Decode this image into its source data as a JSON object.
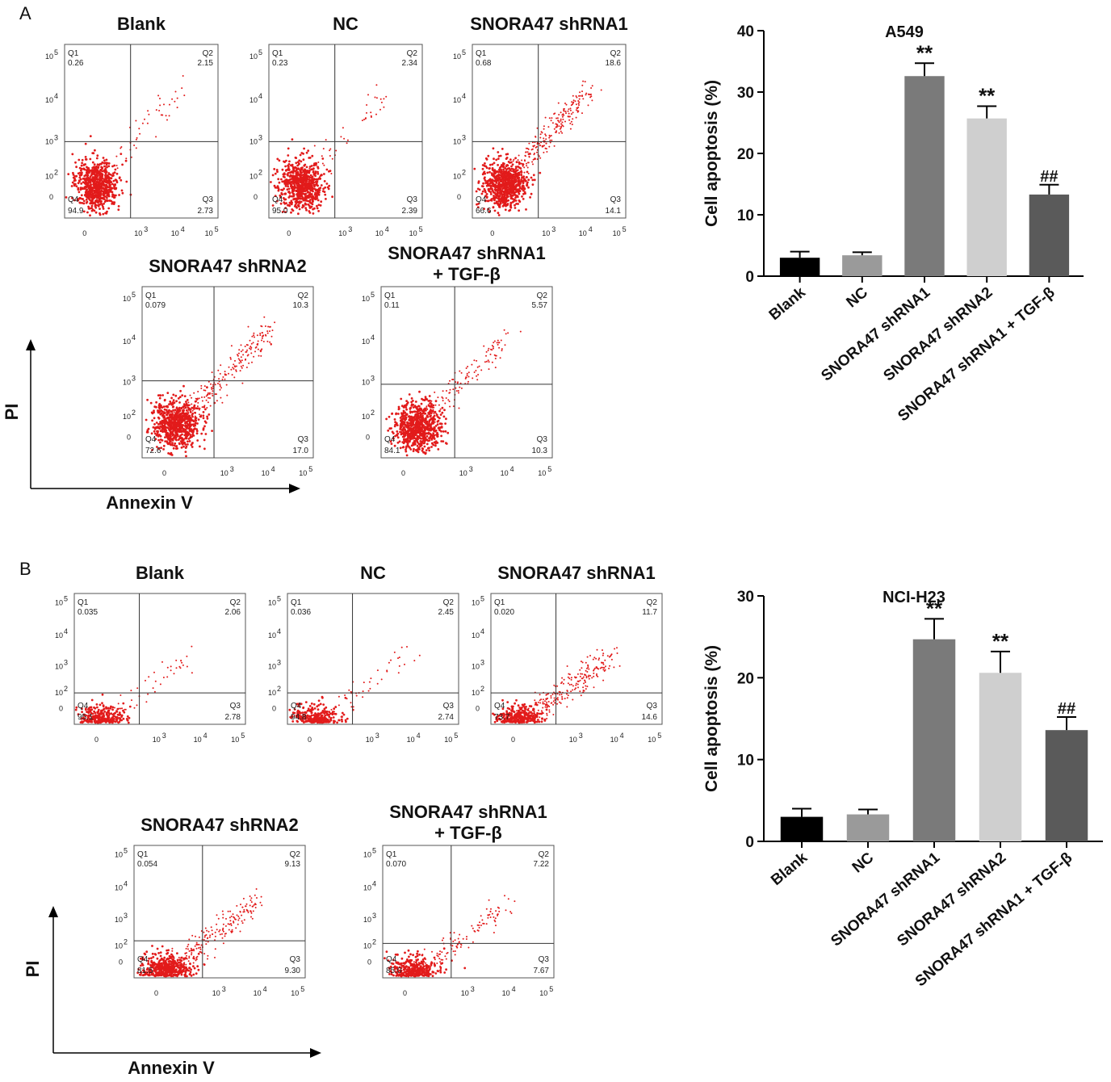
{
  "panels": [
    {
      "label": "A",
      "flow_axis": {
        "x_label": "Annexin V",
        "y_label": "PI"
      },
      "plots": [
        {
          "title": "Blank",
          "title2": "",
          "q1_label": "Q1",
          "q1": "0.26",
          "q2_label": "Q2",
          "q2": "2.15",
          "q3_label": "Q3",
          "q3": "2.73",
          "q4_label": "Q4",
          "q4": "94.9"
        },
        {
          "title": "NC",
          "title2": "",
          "q1_label": "Q1",
          "q1": "0.23",
          "q2_label": "Q2",
          "q2": "2.34",
          "q3_label": "Q3",
          "q3": "2.39",
          "q4_label": "Q4",
          "q4": "95.0"
        },
        {
          "title": "SNORA47 shRNA1",
          "title2": "",
          "q1_label": "Q1",
          "q1": "0.68",
          "q2_label": "Q2",
          "q2": "18.6",
          "q3_label": "Q3",
          "q3": "14.1",
          "q4_label": "Q4",
          "q4": "66.6"
        },
        {
          "title": "SNORA47 shRNA2",
          "title2": "",
          "q1_label": "Q1",
          "q1": "0.079",
          "q2_label": "Q2",
          "q2": "10.3",
          "q3_label": "Q3",
          "q3": "17.0",
          "q4_label": "Q4",
          "q4": "72.6"
        },
        {
          "title": "SNORA47 shRNA1",
          "title2": "+ TGF-β",
          "q1_label": "Q1",
          "q1": "0.11",
          "q2_label": "Q2",
          "q2": "5.57",
          "q3_label": "Q3",
          "q3": "10.3",
          "q4_label": "Q4",
          "q4": "84.1"
        }
      ]
    },
    {
      "label": "B",
      "flow_axis": {
        "x_label": "Annexin V",
        "y_label": "PI"
      },
      "plots": [
        {
          "title": "Blank",
          "title2": "",
          "q1_label": "Q1",
          "q1": "0.035",
          "q2_label": "Q2",
          "q2": "2.06",
          "q3_label": "Q3",
          "q3": "2.78",
          "q4_label": "Q4",
          "q4": "95.1"
        },
        {
          "title": "NC",
          "title2": "",
          "q1_label": "Q1",
          "q1": "0.036",
          "q2_label": "Q2",
          "q2": "2.45",
          "q3_label": "Q3",
          "q3": "2.74",
          "q4_label": "Q4",
          "q4": "94.8"
        },
        {
          "title": "SNORA47 shRNA1",
          "title2": "",
          "q1_label": "Q1",
          "q1": "0.020",
          "q2_label": "Q2",
          "q2": "11.7",
          "q3_label": "Q3",
          "q3": "14.6",
          "q4_label": "Q4",
          "q4": "73.7"
        },
        {
          "title": "SNORA47 shRNA2",
          "title2": "",
          "q1_label": "Q1",
          "q1": "0.054",
          "q2_label": "Q2",
          "q2": "9.13",
          "q3_label": "Q3",
          "q3": "9.30",
          "q4_label": "Q4",
          "q4": "81.5"
        },
        {
          "title": "SNORA47 shRNA1",
          "title2": "+ TGF-β",
          "q1_label": "Q1",
          "q1": "0.070",
          "q2_label": "Q2",
          "q2": "7.22",
          "q3_label": "Q3",
          "q3": "7.67",
          "q4_label": "Q4",
          "q4": "85.0"
        }
      ]
    }
  ],
  "flow_ticks": {
    "x": [
      "0",
      "10",
      "10",
      "10"
    ],
    "x_exp": [
      "",
      "3",
      "4",
      "5"
    ],
    "y": [
      "0",
      "10",
      "10",
      "10",
      "10"
    ],
    "y_exp": [
      "",
      "2",
      "3",
      "4",
      "5"
    ]
  },
  "chart_data": [
    {
      "type": "bar",
      "title": "A549",
      "ylabel": "Cell apoptosis (%)",
      "xlabel": "",
      "ylim": [
        0,
        40
      ],
      "yticks": [
        "0",
        "10",
        "20",
        "30",
        "40"
      ],
      "categories": [
        "Blank",
        "NC",
        "SNORA47 shRNA1",
        "SNORA47 shRNA2",
        "SNORA47 shRNA1 + TGF-β"
      ],
      "values": [
        3.0,
        3.4,
        32.6,
        25.7,
        13.3
      ],
      "errors": [
        1.0,
        0.5,
        2.1,
        2.0,
        1.6
      ],
      "colors": [
        "#000000",
        "#9a9a9a",
        "#7a7a7a",
        "#cfcfcf",
        "#5a5a5a"
      ],
      "annotations": [
        "",
        "",
        "**",
        "**",
        "##"
      ]
    },
    {
      "type": "bar",
      "title": "NCI-H23",
      "ylabel": "Cell apoptosis (%)",
      "xlabel": "",
      "ylim": [
        0,
        30
      ],
      "yticks": [
        "0",
        "10",
        "20",
        "30"
      ],
      "categories": [
        "Blank",
        "NC",
        "SNORA47 shRNA1",
        "SNORA47 shRNA2",
        "SNORA47 shRNA1 + TGF-β"
      ],
      "values": [
        3.0,
        3.3,
        24.7,
        20.6,
        13.6
      ],
      "errors": [
        1.0,
        0.6,
        2.5,
        2.6,
        1.6
      ],
      "colors": [
        "#000000",
        "#9a9a9a",
        "#7a7a7a",
        "#cfcfcf",
        "#5a5a5a"
      ],
      "annotations": [
        "",
        "",
        "**",
        "**",
        "##"
      ]
    }
  ]
}
